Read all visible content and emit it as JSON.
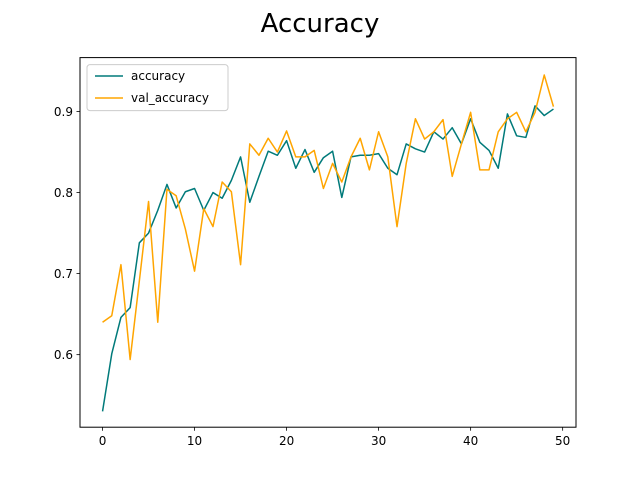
{
  "chart_data": {
    "type": "line",
    "title": "Accuracy",
    "xlabel": "",
    "ylabel": "",
    "xlim": [
      -2.45,
      51.45
    ],
    "ylim": [
      0.5105,
      0.9665
    ],
    "xticks": [
      0,
      10,
      20,
      30,
      40,
      50
    ],
    "yticks": [
      0.6,
      0.7,
      0.8,
      0.9
    ],
    "xtick_labels": [
      "0",
      "10",
      "20",
      "30",
      "40",
      "50"
    ],
    "ytick_labels": [
      "0.6",
      "0.7",
      "0.8",
      "0.9"
    ],
    "grid": false,
    "legend_position": "top-left",
    "x": [
      0,
      1,
      2,
      3,
      4,
      5,
      6,
      7,
      8,
      9,
      10,
      11,
      12,
      13,
      14,
      15,
      16,
      17,
      18,
      19,
      20,
      21,
      22,
      23,
      24,
      25,
      26,
      27,
      28,
      29,
      30,
      31,
      32,
      33,
      34,
      35,
      36,
      37,
      38,
      39,
      40,
      41,
      42,
      43,
      44,
      45,
      46,
      47,
      48,
      49
    ],
    "series": [
      {
        "name": "accuracy",
        "color": "#007a7a",
        "values": [
          0.53,
          0.601,
          0.646,
          0.658,
          0.738,
          0.75,
          0.778,
          0.81,
          0.781,
          0.801,
          0.805,
          0.778,
          0.8,
          0.793,
          0.815,
          0.844,
          0.788,
          0.82,
          0.851,
          0.846,
          0.864,
          0.83,
          0.853,
          0.825,
          0.843,
          0.851,
          0.794,
          0.844,
          0.846,
          0.846,
          0.848,
          0.83,
          0.822,
          0.86,
          0.854,
          0.85,
          0.875,
          0.866,
          0.88,
          0.86,
          0.891,
          0.862,
          0.852,
          0.83,
          0.897,
          0.87,
          0.868,
          0.907,
          0.895,
          0.903
        ]
      },
      {
        "name": "val_accuracy",
        "color": "#ffa500",
        "values": [
          0.64,
          0.648,
          0.711,
          0.594,
          0.691,
          0.789,
          0.64,
          0.804,
          0.796,
          0.755,
          0.703,
          0.78,
          0.758,
          0.813,
          0.801,
          0.711,
          0.86,
          0.846,
          0.867,
          0.85,
          0.876,
          0.844,
          0.844,
          0.852,
          0.805,
          0.836,
          0.813,
          0.844,
          0.867,
          0.828,
          0.875,
          0.844,
          0.758,
          0.836,
          0.891,
          0.866,
          0.875,
          0.89,
          0.82,
          0.86,
          0.899,
          0.828,
          0.828,
          0.875,
          0.891,
          0.899,
          0.875,
          0.899,
          0.945,
          0.906
        ]
      }
    ]
  }
}
